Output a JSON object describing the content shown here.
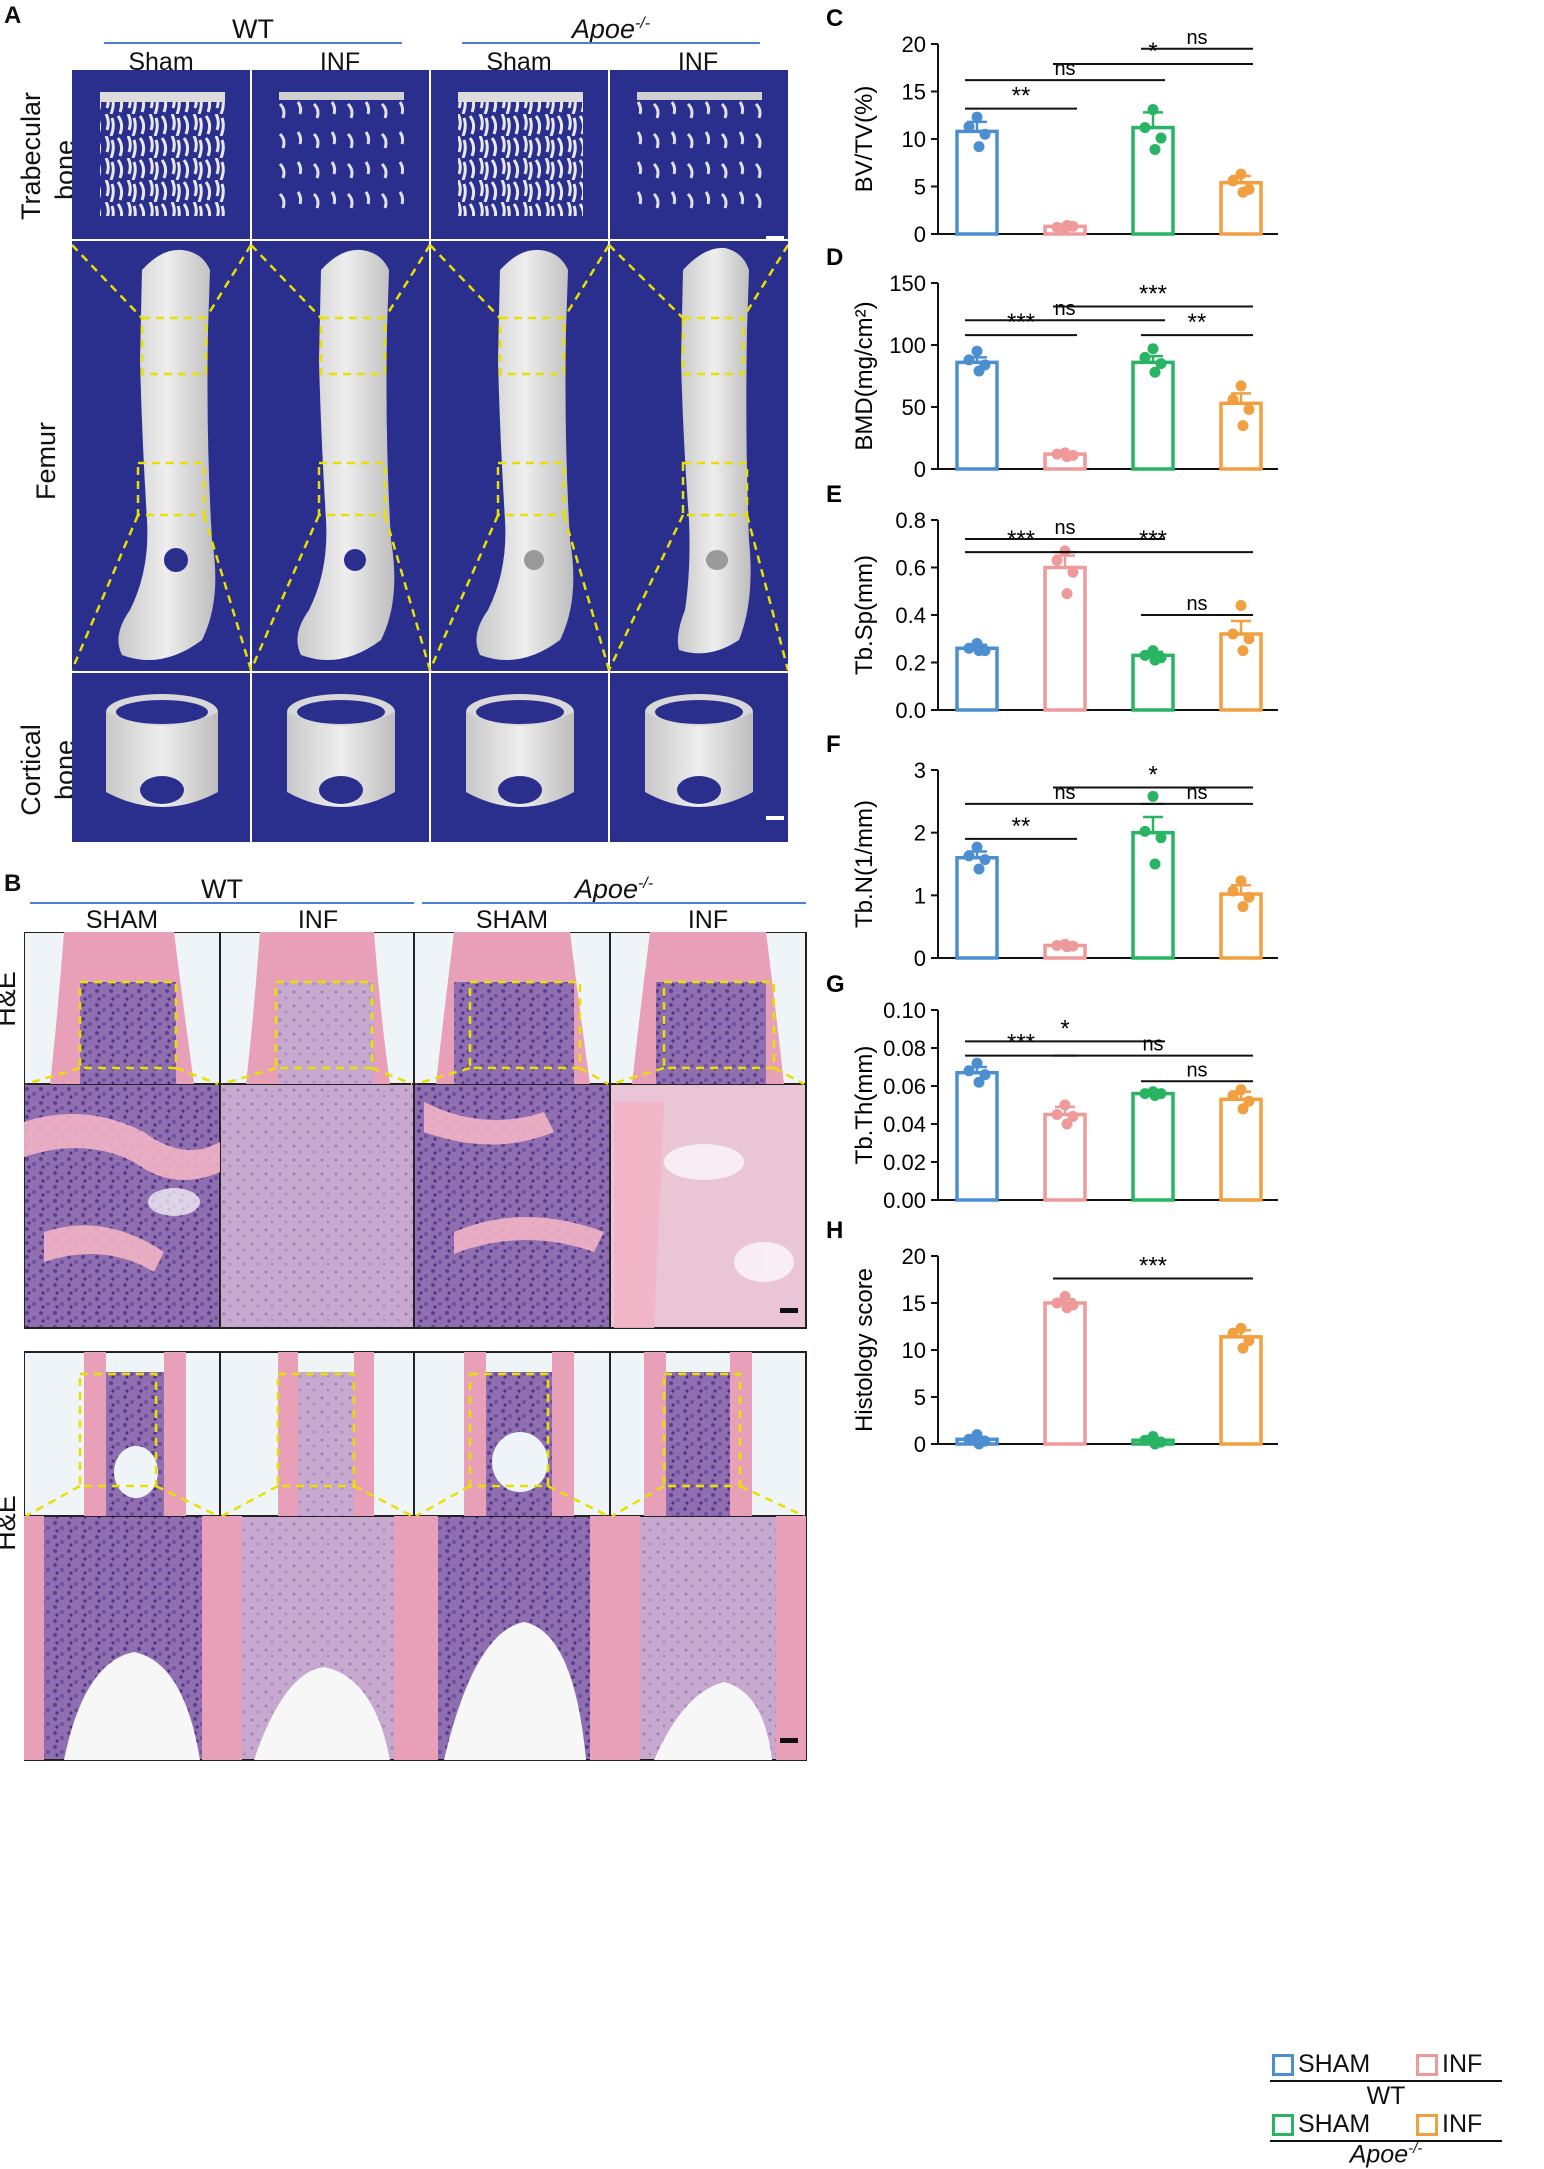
{
  "panel_a": {
    "letter": "A",
    "groups": [
      {
        "name": "WT",
        "italic": false,
        "sub": [
          "Sham",
          "INF"
        ]
      },
      {
        "name": "Apoe",
        "sup": "-/-",
        "italic": true,
        "sub": [
          "Sham",
          "INF"
        ]
      }
    ],
    "rows": [
      {
        "label_lines": [
          "Trabecular",
          "bone"
        ]
      },
      {
        "label_lines": [
          "Femur"
        ]
      },
      {
        "label_lines": [
          "Cortical",
          "bone"
        ]
      }
    ]
  },
  "panel_b": {
    "letter": "B",
    "groups": [
      {
        "name": "WT",
        "sub": [
          "SHAM",
          "INF"
        ]
      },
      {
        "name": "Apoe",
        "sup": "-/-",
        "sub": [
          "SHAM",
          "INF"
        ]
      }
    ],
    "row_label": "H&E"
  },
  "colors": {
    "sham_wt": "#4b8fd0",
    "inf_wt": "#ef9a9a",
    "sham_apoe": "#28b463",
    "inf_apoe": "#f0a040",
    "navy_bg": "#2a2f8d",
    "box_yellow": "#e8e000",
    "sig_line": "#111111"
  },
  "chart_data": [
    {
      "letter": "C",
      "type": "bar",
      "ylabel": "BV/TV(%)",
      "ylim": [
        0,
        20
      ],
      "yticks": [
        "0",
        "5",
        "10",
        "15",
        "20"
      ],
      "tick_values": [
        0,
        5,
        10,
        15,
        20
      ],
      "means": [
        10.8,
        0.8,
        11.2,
        5.4
      ],
      "errors": [
        1.0,
        0.2,
        1.6,
        0.7
      ],
      "points": [
        [
          12.3,
          11.3,
          10.5,
          9.2
        ],
        [
          0.6,
          0.7,
          0.8,
          0.9
        ],
        [
          13.1,
          11.2,
          10.1,
          8.9
        ],
        [
          6.3,
          5.6,
          4.7,
          4.4
        ]
      ],
      "sig": [
        {
          "from": 0,
          "to": 1,
          "label": "**",
          "y": 13.2
        },
        {
          "from": 0,
          "to": 2,
          "label": "ns",
          "y": 16.2
        },
        {
          "from": 1,
          "to": 3,
          "label": "*",
          "y": 17.9
        },
        {
          "from": 2,
          "to": 3,
          "label": "ns",
          "y": 19.5
        }
      ]
    },
    {
      "letter": "D",
      "type": "bar",
      "ylabel": "BMD(mg/cm²)",
      "ylim": [
        0,
        150
      ],
      "yticks": [
        "0",
        "50",
        "100",
        "150"
      ],
      "tick_values": [
        0,
        50,
        100,
        150
      ],
      "means": [
        86,
        12,
        86,
        53
      ],
      "errors": [
        4,
        1.5,
        5,
        8
      ],
      "points": [
        [
          95,
          88,
          84,
          79
        ],
        [
          13,
          12,
          11,
          10
        ],
        [
          97,
          90,
          85,
          78
        ],
        [
          67,
          56,
          48,
          35
        ]
      ],
      "sig": [
        {
          "from": 0,
          "to": 1,
          "label": "***",
          "y": 108
        },
        {
          "from": 0,
          "to": 2,
          "label": "ns",
          "y": 120
        },
        {
          "from": 1,
          "to": 3,
          "label": "***",
          "y": 131
        },
        {
          "from": 2,
          "to": 3,
          "label": "**",
          "y": 108
        }
      ]
    },
    {
      "letter": "E",
      "type": "bar",
      "ylabel": "Tb.Sp(mm)",
      "ylim": [
        0,
        0.8
      ],
      "yticks": [
        "0.0",
        "0.2",
        "0.4",
        "0.6",
        "0.8"
      ],
      "tick_values": [
        0,
        0.2,
        0.4,
        0.6,
        0.8
      ],
      "means": [
        0.26,
        0.6,
        0.23,
        0.32
      ],
      "errors": [
        0.015,
        0.05,
        0.015,
        0.055
      ],
      "points": [
        [
          0.28,
          0.26,
          0.25,
          0.25
        ],
        [
          0.67,
          0.63,
          0.58,
          0.49
        ],
        [
          0.25,
          0.23,
          0.22,
          0.21
        ],
        [
          0.44,
          0.32,
          0.3,
          0.25
        ]
      ],
      "sig": [
        {
          "from": 0,
          "to": 1,
          "label": "***",
          "y": 0.665
        },
        {
          "from": 0,
          "to": 2,
          "label": "ns",
          "y": 0.72
        },
        {
          "from": 1,
          "to": 3,
          "label": "***",
          "y": 0.665
        },
        {
          "from": 2,
          "to": 3,
          "label": "ns",
          "y": 0.4
        }
      ]
    },
    {
      "letter": "F",
      "type": "bar",
      "ylabel": "Tb.N(1/mm)",
      "ylim": [
        0,
        3
      ],
      "yticks": [
        "0",
        "1",
        "2",
        "3"
      ],
      "tick_values": [
        0,
        1,
        2,
        3
      ],
      "means": [
        1.6,
        0.2,
        2.0,
        1.02
      ],
      "errors": [
        0.1,
        0.02,
        0.25,
        0.14
      ],
      "points": [
        [
          1.77,
          1.63,
          1.57,
          1.42
        ],
        [
          0.22,
          0.2,
          0.19,
          0.18
        ],
        [
          2.58,
          2.02,
          1.92,
          1.5
        ],
        [
          1.23,
          1.07,
          0.97,
          0.82
        ]
      ],
      "sig": [
        {
          "from": 0,
          "to": 1,
          "label": "**",
          "y": 1.9
        },
        {
          "from": 0,
          "to": 2,
          "label": "ns",
          "y": 2.46
        },
        {
          "from": 1,
          "to": 3,
          "label": "*",
          "y": 2.72
        },
        {
          "from": 2,
          "to": 3,
          "label": "ns",
          "y": 2.46
        }
      ]
    },
    {
      "letter": "G",
      "type": "bar",
      "ylabel": "Tb.Th(mm)",
      "ylim": [
        0,
        0.1
      ],
      "yticks": [
        "0.00",
        "0.02",
        "0.04",
        "0.06",
        "0.08",
        "0.10"
      ],
      "tick_values": [
        0,
        0.02,
        0.04,
        0.06,
        0.08,
        0.1
      ],
      "means": [
        0.067,
        0.045,
        0.056,
        0.053
      ],
      "errors": [
        0.003,
        0.004,
        0.001,
        0.004
      ],
      "points": [
        [
          0.072,
          0.068,
          0.066,
          0.062
        ],
        [
          0.05,
          0.045,
          0.044,
          0.04
        ],
        [
          0.057,
          0.056,
          0.056,
          0.055
        ],
        [
          0.058,
          0.055,
          0.052,
          0.048
        ]
      ],
      "sig": [
        {
          "from": 0,
          "to": 1,
          "label": "***",
          "y": 0.076
        },
        {
          "from": 0,
          "to": 2,
          "label": "*",
          "y": 0.0835
        },
        {
          "from": 1,
          "to": 3,
          "label": "ns",
          "y": 0.076
        },
        {
          "from": 2,
          "to": 3,
          "label": "ns",
          "y": 0.0625
        }
      ]
    },
    {
      "letter": "H",
      "type": "bar",
      "ylabel": "Histology score",
      "ylim": [
        0,
        20
      ],
      "yticks": [
        "0",
        "5",
        "10",
        "15",
        "20"
      ],
      "tick_values": [
        0,
        5,
        10,
        15,
        20
      ],
      "means": [
        0.5,
        15.0,
        0.4,
        11.4
      ],
      "errors": [
        0.25,
        0.4,
        0.25,
        0.7
      ],
      "points": [
        [
          1.0,
          0.5,
          0.3,
          0.0
        ],
        [
          15.7,
          15.0,
          14.8,
          14.5
        ],
        [
          0.8,
          0.4,
          0.2,
          0.0
        ],
        [
          12.3,
          11.8,
          11.0,
          10.2
        ]
      ],
      "sig": [
        {
          "from": 1,
          "to": 3,
          "label": "***",
          "y": 17.6
        }
      ]
    }
  ],
  "legend": {
    "rows": [
      {
        "items": [
          {
            "label": "SHAM",
            "color": "#4b8fd0"
          },
          {
            "label": "INF",
            "color": "#ef9a9a"
          }
        ],
        "group": "WT",
        "italic": false
      },
      {
        "items": [
          {
            "label": "SHAM",
            "color": "#28b463"
          },
          {
            "label": "INF",
            "color": "#f0a040"
          }
        ],
        "group": "Apoe",
        "sup": "-/-",
        "italic": true
      }
    ]
  }
}
